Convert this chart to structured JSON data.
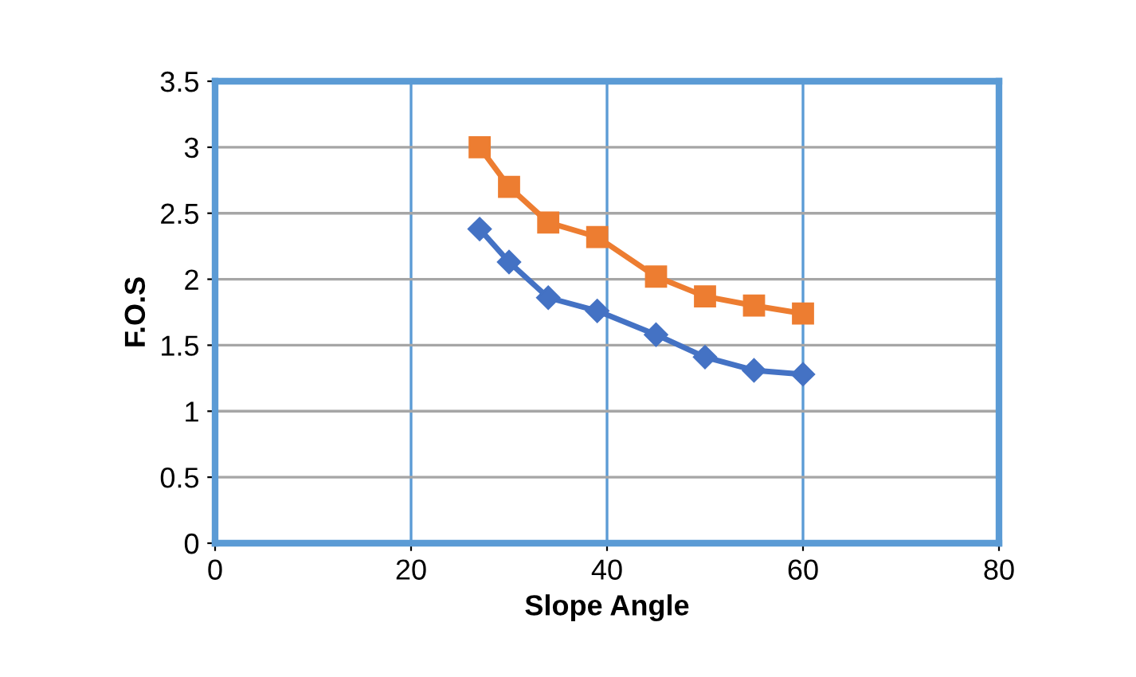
{
  "chart_data": {
    "type": "line",
    "xlabel": "Slope Angle",
    "ylabel": "F.O.S",
    "series": [
      {
        "color": "#4472c4",
        "marker": "diamond",
        "x": [
          27,
          30,
          34,
          39,
          45,
          50,
          55,
          60
        ],
        "values": [
          2.38,
          2.13,
          1.86,
          1.76,
          1.58,
          1.41,
          1.31,
          1.28
        ]
      },
      {
        "color": "#ed7d31",
        "marker": "square",
        "x": [
          27,
          30,
          34,
          39,
          45,
          50,
          55,
          60
        ],
        "values": [
          3.0,
          2.7,
          2.43,
          2.32,
          2.02,
          1.87,
          1.8,
          1.74
        ]
      }
    ],
    "xlim": [
      0,
      80
    ],
    "xticks": [
      0,
      20,
      40,
      60,
      80
    ],
    "ylim": [
      0,
      3.5
    ],
    "yticks": [
      0,
      0.5,
      1,
      1.5,
      2,
      2.5,
      3,
      3.5
    ],
    "grid": true,
    "line_style": "solid",
    "legend": false
  }
}
